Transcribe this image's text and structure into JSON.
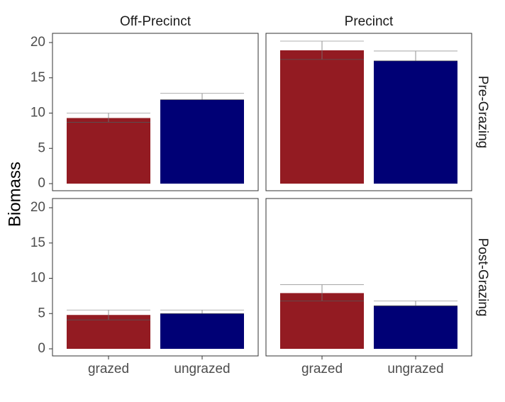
{
  "chart_data": {
    "type": "bar",
    "ylabel": "Biomass",
    "xlabel": "",
    "categories": [
      "grazed",
      "ungrazed"
    ],
    "facet_columns": [
      "Off-Precinct",
      "Precinct"
    ],
    "facet_rows": [
      "Pre-Grazing",
      "Post-Grazing"
    ],
    "ylim": [
      0,
      21
    ],
    "yticks": [
      "0",
      "5",
      "10",
      "15",
      "20"
    ],
    "grid": false,
    "legend": "none",
    "colors": {
      "grazed": "#931b22",
      "ungrazed": "#000075"
    },
    "panels": [
      {
        "column": "Off-Precinct",
        "row": "Pre-Grazing",
        "values": [
          9.3,
          11.9
        ],
        "error_upper": [
          10.0,
          12.8
        ],
        "error_lower": [
          8.7,
          11.9
        ]
      },
      {
        "column": "Precinct",
        "row": "Pre-Grazing",
        "values": [
          18.9,
          17.4
        ],
        "error_upper": [
          20.2,
          18.8
        ],
        "error_lower": [
          17.6,
          17.4
        ]
      },
      {
        "column": "Off-Precinct",
        "row": "Post-Grazing",
        "values": [
          4.8,
          5.0
        ],
        "error_upper": [
          5.5,
          5.5
        ],
        "error_lower": [
          4.1,
          5.0
        ]
      },
      {
        "column": "Precinct",
        "row": "Post-Grazing",
        "values": [
          7.9,
          6.1
        ],
        "error_upper": [
          9.1,
          6.8
        ],
        "error_lower": [
          6.8,
          6.1
        ]
      }
    ]
  }
}
